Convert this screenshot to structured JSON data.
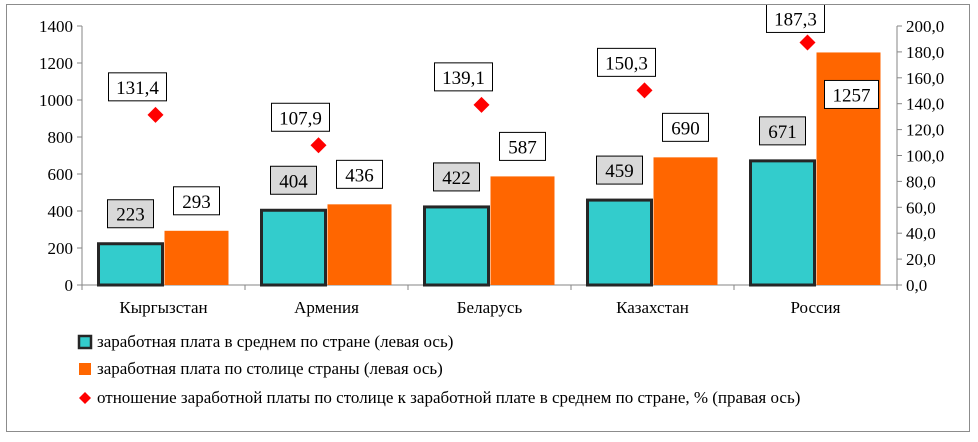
{
  "chart_data": {
    "type": "bar",
    "categories": [
      "Кыргызстан",
      "Армения",
      "Беларусь",
      "Казахстан",
      "Россия"
    ],
    "series": [
      {
        "name": "заработная плата в среднем по стране (левая ось)",
        "axis": "left",
        "kind": "bar",
        "color": "#33cccc",
        "stroke": "#262626",
        "values": [
          223,
          404,
          422,
          459,
          671
        ],
        "labels": [
          "223",
          "404",
          "422",
          "459",
          "671"
        ]
      },
      {
        "name": "заработная плата по столице страны (левая ось)",
        "axis": "left",
        "kind": "bar",
        "color": "#ff6600",
        "values": [
          293,
          436,
          587,
          690,
          1257
        ],
        "labels": [
          "293",
          "436",
          "587",
          "690",
          "1257"
        ]
      },
      {
        "name": "отношение заработной платы по столице к заработной плате в среднем по стране, % (правая ось)",
        "axis": "right",
        "kind": "marker",
        "marker": "diamond",
        "color": "#ff0000",
        "values": [
          131.4,
          107.9,
          139.1,
          150.3,
          187.3
        ],
        "labels": [
          "131,4",
          "107,9",
          "139,1",
          "150,3",
          "187,3"
        ]
      }
    ],
    "left_axis": {
      "ylim": [
        0,
        1400
      ],
      "ticks": [
        "0",
        "200",
        "400",
        "600",
        "800",
        "1000",
        "1200",
        "1400"
      ]
    },
    "right_axis": {
      "ylim": [
        0,
        200
      ],
      "ticks": [
        "0,0",
        "20,0",
        "40,0",
        "60,0",
        "80,0",
        "100,0",
        "120,0",
        "140,0",
        "160,0",
        "180,0",
        "200,0"
      ]
    },
    "grid": false,
    "legend_position": "bottom-left"
  }
}
